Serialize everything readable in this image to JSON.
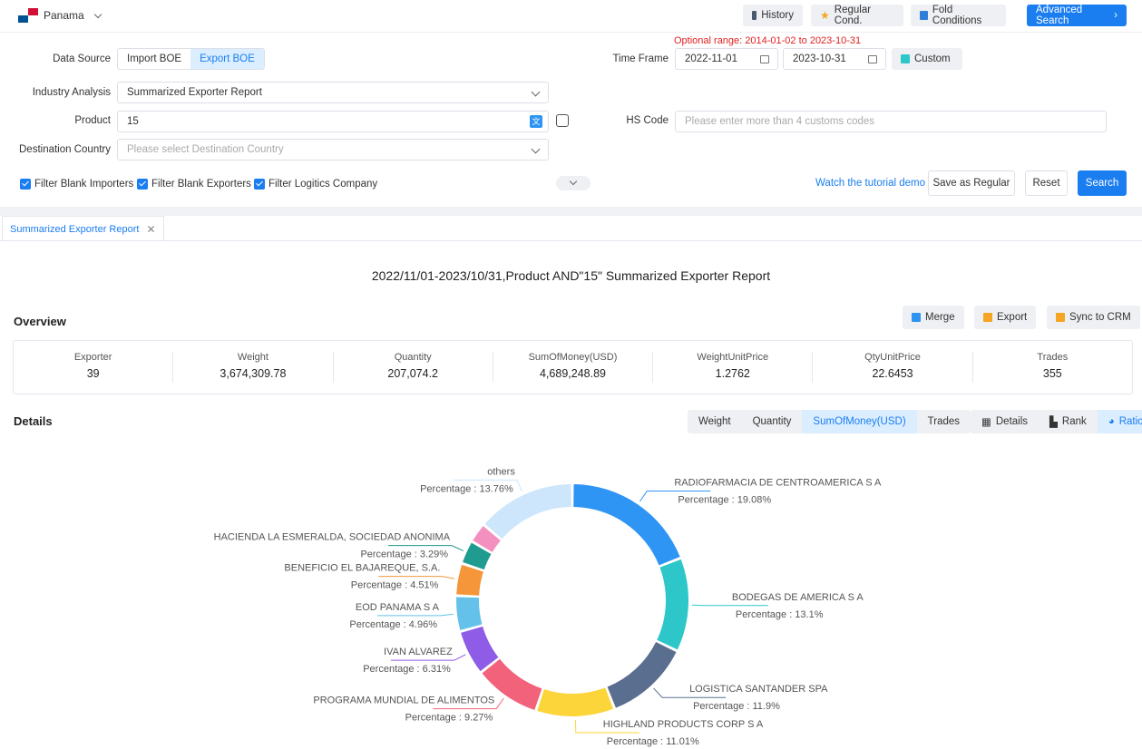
{
  "header": {
    "country": "Panama",
    "buttons": {
      "history": "History",
      "regular": "Regular Cond.",
      "fold": "Fold Conditions",
      "advanced": "Advanced Search"
    }
  },
  "form": {
    "optional_range": "Optional range:  2014-01-02 to 2023-10-31",
    "data_source_label": "Data Source",
    "data_source_options": [
      "Import BOE",
      "Export BOE"
    ],
    "data_source_selected": "Export BOE",
    "industry_label": "Industry Analysis",
    "industry_value": "Summarized Exporter Report",
    "product_label": "Product",
    "product_value": "15",
    "destination_label": "Destination Country",
    "destination_placeholder": "Please select Destination Country",
    "timeframe_label": "Time Frame",
    "date_from": "2022-11-01",
    "date_to": "2023-10-31",
    "custom_label": "Custom",
    "hscode_label": "HS Code",
    "hscode_placeholder": "Please enter more than 4 customs codes",
    "filters": [
      "Filter Blank Importers",
      "Filter Blank Exporters",
      "Filter Logitics Company"
    ],
    "tutorial": "Watch the tutorial demo",
    "save_regular": "Save as Regular",
    "reset": "Reset",
    "search": "Search"
  },
  "report": {
    "tab": "Summarized Exporter Report",
    "title": "2022/11/01-2023/10/31,Product AND\"15\" Summarized Exporter Report",
    "overview_title": "Overview",
    "actions": {
      "merge": "Merge",
      "export": "Export",
      "sync": "Sync to CRM"
    },
    "stats": [
      {
        "label": "Exporter",
        "value": "39"
      },
      {
        "label": "Weight",
        "value": "3,674,309.78"
      },
      {
        "label": "Quantity",
        "value": "207,074.2"
      },
      {
        "label": "SumOfMoney(USD)",
        "value": "4,689,248.89"
      },
      {
        "label": "WeightUnitPrice",
        "value": "1.2762"
      },
      {
        "label": "QtyUnitPrice",
        "value": "22.6453"
      },
      {
        "label": "Trades",
        "value": "355"
      }
    ],
    "details_title": "Details",
    "metric_tabs": [
      "Weight",
      "Quantity",
      "SumOfMoney(USD)",
      "Trades"
    ],
    "metric_selected": "SumOfMoney(USD)",
    "view_tabs": [
      "Details",
      "Rank",
      "Ratio"
    ],
    "view_selected": "Ratio"
  },
  "chart_data": {
    "type": "pie",
    "variant": "donut",
    "value_prefix": "Percentage :  ",
    "slices": [
      {
        "name": "RADIOFARMACIA DE CENTROAMERICA S A",
        "value": 19.08,
        "label": "19.08%",
        "color": "#2f95f5"
      },
      {
        "name": "BODEGAS DE AMERICA S A",
        "value": 13.1,
        "label": "13.1%",
        "color": "#2ec7c9"
      },
      {
        "name": "LOGISTICA SANTANDER SPA",
        "value": 11.9,
        "label": "11.9%",
        "color": "#5a6e8f"
      },
      {
        "name": "HIGHLAND PRODUCTS CORP S A",
        "value": 11.01,
        "label": "11.01%",
        "color": "#fcd53a"
      },
      {
        "name": "PROGRAMA MUNDIAL DE ALIMENTOS",
        "value": 9.27,
        "label": "9.27%",
        "color": "#f2637b"
      },
      {
        "name": "IVAN ALVAREZ",
        "value": 6.31,
        "label": "6.31%",
        "color": "#8e5ce6"
      },
      {
        "name": "EOD PANAMA S A",
        "value": 4.96,
        "label": "4.96%",
        "color": "#64c2ea"
      },
      {
        "name": "BENEFICIO EL BAJAREQUE, S.A.",
        "value": 4.51,
        "label": "4.51%",
        "color": "#f5963a"
      },
      {
        "name": "HACIENDA LA ESMERALDA, SOCIEDAD ANONIMA",
        "value": 3.29,
        "label": "3.29%",
        "color": "#1f9b8f"
      },
      {
        "name": "",
        "value": 2.81,
        "label": "",
        "color": "#f490c0"
      },
      {
        "name": "others",
        "value": 13.76,
        "label": "13.76%",
        "color": "#cde6fb"
      }
    ]
  }
}
